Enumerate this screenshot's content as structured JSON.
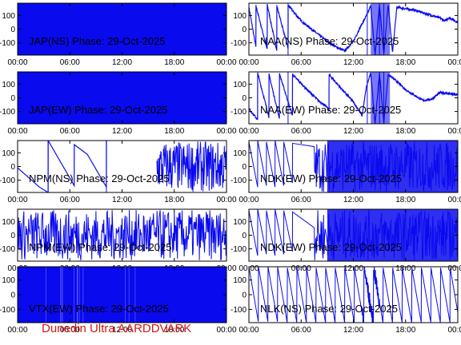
{
  "chart_data": [
    {
      "type": "line",
      "label": "JAP(NS) Phase: 29-Oct-2025",
      "yticks": [
        100,
        0,
        -100
      ],
      "xticks": [
        "00:00",
        "06:00",
        "12:00",
        "18:00",
        "00:00"
      ],
      "ylim": [
        -190,
        190
      ],
      "xlim": [
        0,
        24
      ],
      "pattern": "solid",
      "series": [
        {
          "x": [
            0,
            24
          ],
          "y": [
            0,
            0
          ]
        }
      ]
    },
    {
      "type": "line",
      "label": "NAA(NS) Phase: 29-Oct-2025",
      "yticks": [
        100,
        0,
        -100
      ],
      "xticks": [
        "00:00",
        "06:00",
        "12:00",
        "18:00",
        "00:00"
      ],
      "ylim": [
        -190,
        190
      ],
      "xlim": [
        0,
        24
      ],
      "pattern": "noisy",
      "series": [
        {
          "x": [
            0,
            0.8,
            0.81,
            2.1,
            2.11,
            3.2,
            3.21,
            4.5,
            4.51,
            6,
            7,
            8,
            9,
            10,
            11,
            12,
            13,
            13.6,
            14,
            14.5,
            15,
            15.5,
            16,
            16.5,
            17,
            18,
            19,
            20,
            21,
            22,
            22.5,
            23,
            24
          ],
          "y": [
            160,
            -130,
            170,
            -150,
            180,
            -160,
            170,
            -140,
            175,
            60,
            10,
            -40,
            -90,
            -130,
            -160,
            -90,
            40,
            110,
            170,
            -190,
            180,
            -180,
            180,
            -170,
            160,
            150,
            140,
            120,
            100,
            80,
            60,
            85,
            50
          ]
        }
      ]
    },
    {
      "type": "line",
      "label": "JAP(EW) Phase: 29-Oct-2025",
      "yticks": [
        100,
        0,
        -100
      ],
      "xticks": [
        "00:00",
        "06:00",
        "12:00",
        "18:00",
        "00:00"
      ],
      "ylim": [
        -190,
        190
      ],
      "xlim": [
        0,
        24
      ],
      "pattern": "solid",
      "series": [
        {
          "x": [
            0,
            24
          ],
          "y": [
            0,
            0
          ]
        }
      ]
    },
    {
      "type": "line",
      "label": "NAA(EW) Phase: 29-Oct-2025",
      "yticks": [
        100,
        0,
        -100
      ],
      "xticks": [
        "00:00",
        "06:00",
        "12:00",
        "18:00",
        "00:00"
      ],
      "ylim": [
        -190,
        190
      ],
      "xlim": [
        0,
        24
      ],
      "pattern": "noisy",
      "series": [
        {
          "x": [
            0,
            1,
            1.01,
            2.3,
            2.31,
            3.5,
            3.51,
            5,
            5.01,
            7,
            8,
            9,
            9.2,
            9.21,
            11,
            12,
            13,
            13.5,
            14,
            14.5,
            15,
            15.5,
            16,
            17,
            18,
            19,
            20,
            21,
            22,
            23,
            24
          ],
          "y": [
            -80,
            -160,
            180,
            -140,
            170,
            -150,
            175,
            -130,
            170,
            40,
            -20,
            -70,
            -100,
            170,
            40,
            -30,
            -130,
            80,
            180,
            -190,
            180,
            -180,
            170,
            120,
            60,
            20,
            -20,
            -10,
            40,
            30,
            20
          ]
        }
      ]
    },
    {
      "type": "line",
      "label": "NPM(NS) Phase: 29-Oct-2025",
      "yticks": [
        100,
        0,
        -100
      ],
      "xticks": [
        "00:00",
        "06:00",
        "12:00",
        "18:00",
        "00:00"
      ],
      "ylim": [
        -190,
        190
      ],
      "xlim": [
        0,
        24
      ],
      "pattern": "npm",
      "series": [
        {
          "x": [
            0,
            2.5,
            3.5,
            3.51,
            6.5,
            6.51,
            8,
            10.2,
            10.21,
            13,
            15,
            16,
            17,
            18,
            19,
            20,
            21,
            22,
            23,
            24
          ],
          "y": [
            -10,
            -150,
            -190,
            190,
            -140,
            160,
            90,
            -150,
            190,
            -50,
            -190,
            180,
            -180,
            170,
            -170,
            160,
            -160,
            150,
            -150,
            100
          ]
        }
      ]
    },
    {
      "type": "line",
      "label": "NDK(EW) Phase: 29-Oct-2025",
      "yticks": [
        100,
        0,
        -100
      ],
      "xticks": [
        "00:00",
        "06:00",
        "12:00",
        "18:00",
        "00:00"
      ],
      "ylim": [
        -190,
        190
      ],
      "xlim": [
        0,
        24
      ],
      "pattern": "dense",
      "series": [
        {
          "x": [
            0,
            1,
            1.01,
            2,
            2.01,
            3,
            3.01,
            4,
            4.01,
            5,
            5.01,
            6,
            24
          ],
          "y": [
            180,
            -150,
            190,
            -140,
            180,
            -150,
            190,
            -140,
            180,
            -120,
            170,
            0,
            0
          ]
        }
      ]
    },
    {
      "type": "line",
      "label": "NPM(EW) Phase: 29-Oct-2025",
      "yticks": [
        100,
        0,
        -100
      ],
      "xticks": [
        "00:00",
        "06:00",
        "12:00",
        "18:00",
        "00:00"
      ],
      "ylim": [
        -190,
        190
      ],
      "xlim": [
        0,
        24
      ],
      "pattern": "dense",
      "series": [
        {
          "x": [
            0,
            24
          ],
          "y": [
            0,
            0
          ]
        }
      ]
    },
    {
      "type": "line",
      "label": "NDK(EW) Phase: 29-Oct-2025",
      "yticks": [
        100,
        0,
        -100
      ],
      "xticks": [
        "00:00",
        "06:00",
        "12:00",
        "18:00",
        "00:00"
      ],
      "ylim": [
        -190,
        190
      ],
      "xlim": [
        0,
        24
      ],
      "pattern": "dense",
      "series": [
        {
          "x": [
            0,
            1,
            1.01,
            2,
            2.01,
            3,
            3.01,
            4,
            4.01,
            5,
            5.01,
            6,
            24
          ],
          "y": [
            180,
            -150,
            190,
            -140,
            180,
            -150,
            190,
            -140,
            180,
            -120,
            170,
            0,
            0
          ]
        }
      ]
    },
    {
      "type": "line",
      "label": "VTX(EW) Phase: 29-Oct-2025",
      "yticks": [
        100,
        0,
        -100
      ],
      "xticks": [
        "00:00",
        "06:00",
        "12:00",
        "18:00",
        "00:00"
      ],
      "ylim": [
        -190,
        190
      ],
      "xlim": [
        0,
        24
      ],
      "pattern": "solid",
      "series": [
        {
          "x": [
            0,
            24
          ],
          "y": [
            0,
            0
          ]
        }
      ]
    },
    {
      "type": "line",
      "label": "NLK(NS) Phase: 29-Oct-2025",
      "yticks": [
        100,
        0,
        -100
      ],
      "xticks": [
        "00:00",
        "06:00",
        "12:00",
        "18:00",
        "00:00"
      ],
      "ylim": [
        -190,
        190
      ],
      "xlim": [
        0,
        24
      ],
      "pattern": "sawtooth",
      "series": [
        {
          "x": [
            0,
            24
          ],
          "y": [
            0,
            0
          ]
        }
      ]
    }
  ],
  "footer": {
    "text": "Dunedin Ultra AARDDVARK"
  },
  "colors": {
    "series": "#0a0aee",
    "axis": "#000000",
    "footer": "#d01818"
  }
}
